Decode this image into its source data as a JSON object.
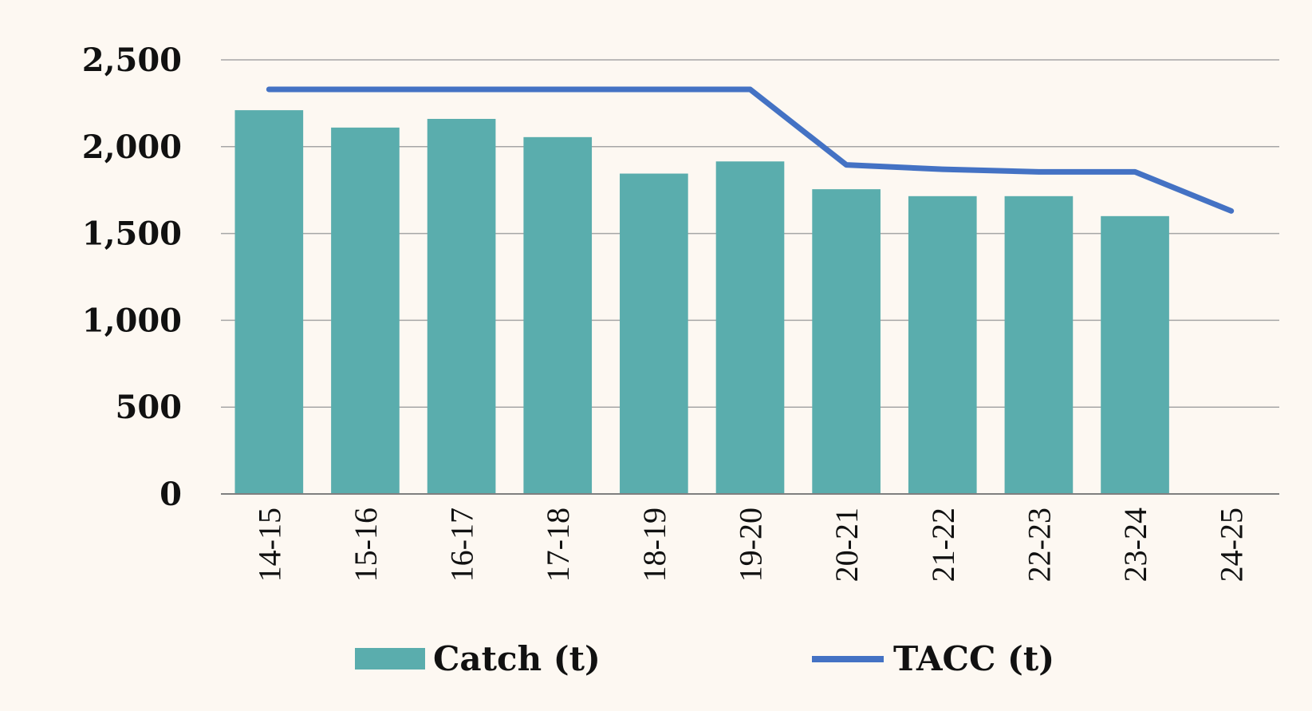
{
  "colors": {
    "background": "#fdf8f2",
    "bar": "#5aadad",
    "line": "#4472c4",
    "grid": "#a6a6a6",
    "axis": "#7f7f7f",
    "text": "#111111"
  },
  "chart_data": {
    "type": "bar",
    "title": "",
    "xlabel": "",
    "ylabel": "",
    "categories": [
      "14-15",
      "15-16",
      "16-17",
      "17-18",
      "18-19",
      "19-20",
      "20-21",
      "21-22",
      "22-23",
      "23-24",
      "24-25"
    ],
    "ylim": [
      0,
      2500
    ],
    "yticks": [
      0,
      500,
      1000,
      1500,
      2000,
      2500
    ],
    "ytick_labels": [
      "0",
      "500",
      "1,000",
      "1,500",
      "2,000",
      "2,500"
    ],
    "grid": true,
    "legend_position": "bottom",
    "series": [
      {
        "name": "Catch (t)",
        "type": "bar",
        "color": "#5aadad",
        "values": [
          2210,
          2110,
          2160,
          2055,
          1845,
          1915,
          1755,
          1715,
          1715,
          1600,
          null
        ]
      },
      {
        "name": "TACC (t)",
        "type": "line",
        "color": "#4472c4",
        "values": [
          2330,
          2330,
          2330,
          2330,
          2330,
          2330,
          1895,
          1870,
          1855,
          1855,
          1630
        ]
      }
    ]
  }
}
